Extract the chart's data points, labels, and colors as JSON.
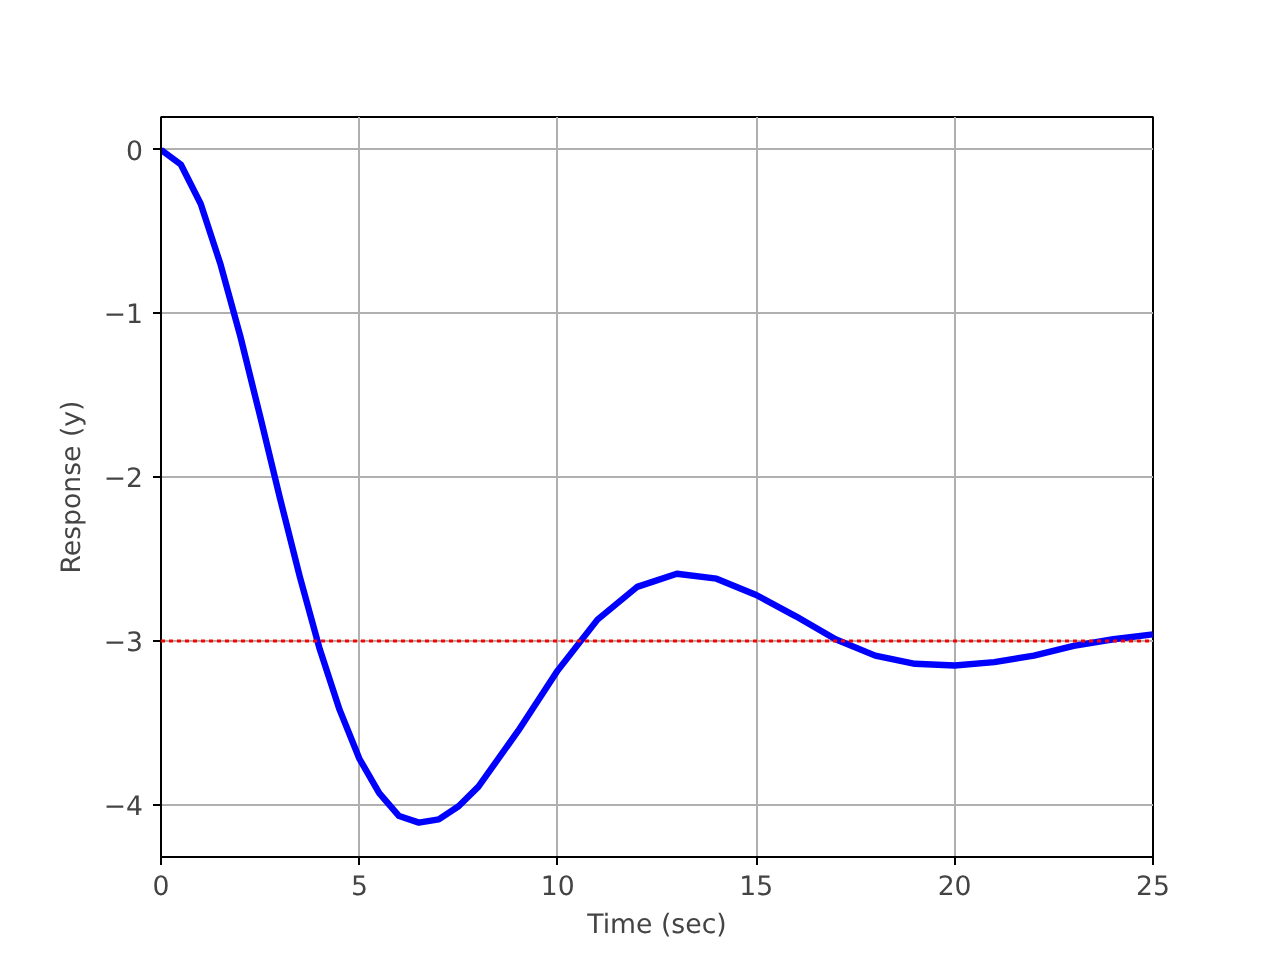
{
  "chart_data": {
    "type": "line",
    "xlabel": "Time (sec)",
    "ylabel": "Response (y)",
    "xlim": [
      0,
      25
    ],
    "ylim": [
      -4.32,
      0.2
    ],
    "xticks": [
      0,
      5,
      10,
      15,
      20,
      25
    ],
    "yticks": [
      0,
      {
        "value": -1,
        "label": "−1"
      },
      {
        "value": -2,
        "label": "−2"
      },
      {
        "value": -3,
        "label": "−3"
      },
      {
        "value": -4,
        "label": "−4"
      }
    ],
    "grid": true,
    "line_style": "solid",
    "marker": "none",
    "series": [
      {
        "color": "#0000ff",
        "x": [
          0,
          0.5,
          1,
          1.5,
          2,
          2.5,
          3,
          3.5,
          4,
          4.5,
          5,
          5.5,
          6,
          6.5,
          7,
          7.5,
          8,
          9,
          10,
          11,
          12,
          13,
          14,
          15,
          16,
          17,
          18,
          19,
          20,
          21,
          22,
          23,
          24,
          25
        ],
        "values": [
          0,
          -0.09,
          -0.33,
          -0.7,
          -1.14,
          -1.63,
          -2.13,
          -2.61,
          -3.05,
          -3.42,
          -3.72,
          -3.93,
          -4.07,
          -4.11,
          -4.09,
          -4.01,
          -3.89,
          -3.55,
          -3.18,
          -2.87,
          -2.67,
          -2.59,
          -2.62,
          -2.72,
          -2.85,
          -2.99,
          -3.09,
          -3.14,
          -3.15,
          -3.13,
          -3.09,
          -3.03,
          -2.99,
          -2.96
        ]
      }
    ],
    "ref_lines": [
      {
        "axis": "y",
        "value": -3,
        "color": "#ff0000",
        "line_style": "dotted"
      }
    ]
  }
}
